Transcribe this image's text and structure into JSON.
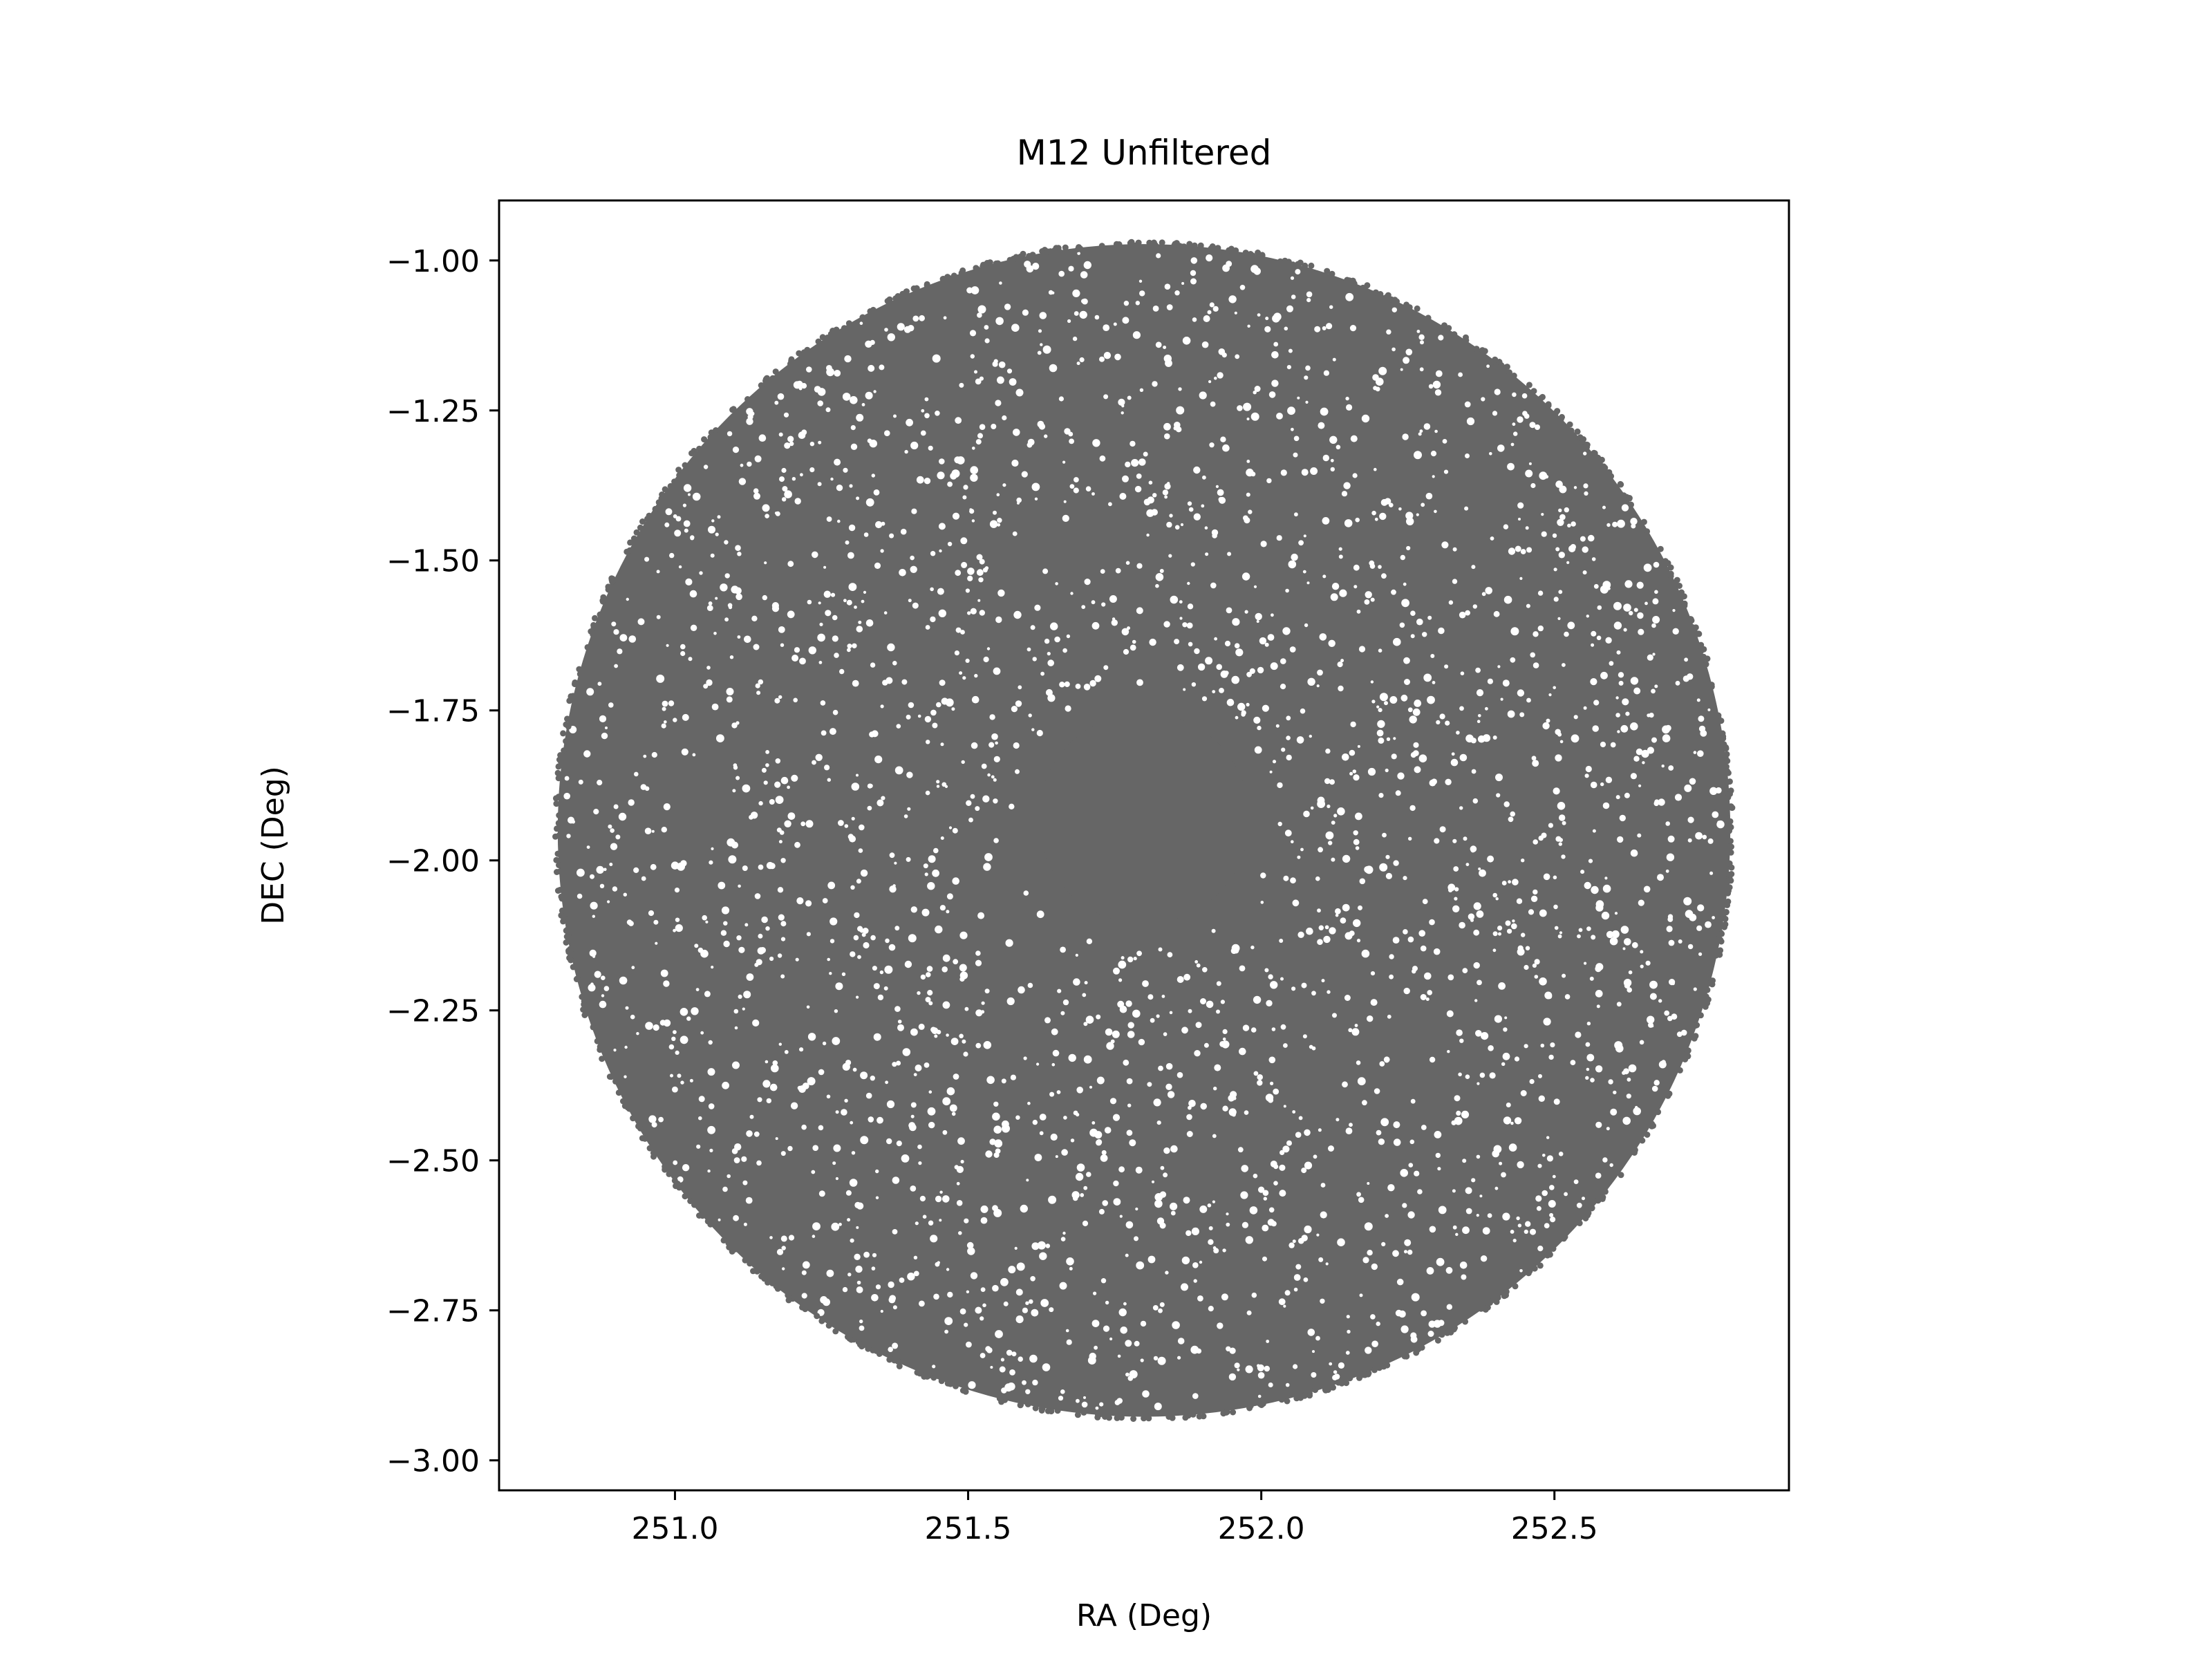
{
  "chart_data": {
    "type": "scatter",
    "title": "M12 Unfiltered",
    "xlabel": "RA (Deg)",
    "ylabel": "DEC (Deg)",
    "xlim": [
      250.7,
      252.9
    ],
    "ylim": [
      -3.05,
      -0.9
    ],
    "x_ticks": [
      251.0,
      251.5,
      252.0,
      252.5
    ],
    "x_tick_labels": [
      "251.0",
      "251.5",
      "252.0",
      "252.5"
    ],
    "y_ticks": [
      -1.0,
      -1.25,
      -1.5,
      -1.75,
      -2.0,
      -2.25,
      -2.5,
      -2.75,
      -3.0
    ],
    "y_tick_labels": [
      "−1.00",
      "−1.25",
      "−1.50",
      "−1.75",
      "−2.00",
      "−2.25",
      "−2.50",
      "−2.75",
      "−3.00"
    ],
    "grid": false,
    "series": [
      {
        "color": "#666666",
        "distribution": {
          "center": [
            251.8,
            -1.95
          ],
          "radius": 1.0,
          "dense_core_center": [
            251.8,
            -1.93
          ],
          "dense_core_radius": 0.18
        }
      }
    ]
  }
}
